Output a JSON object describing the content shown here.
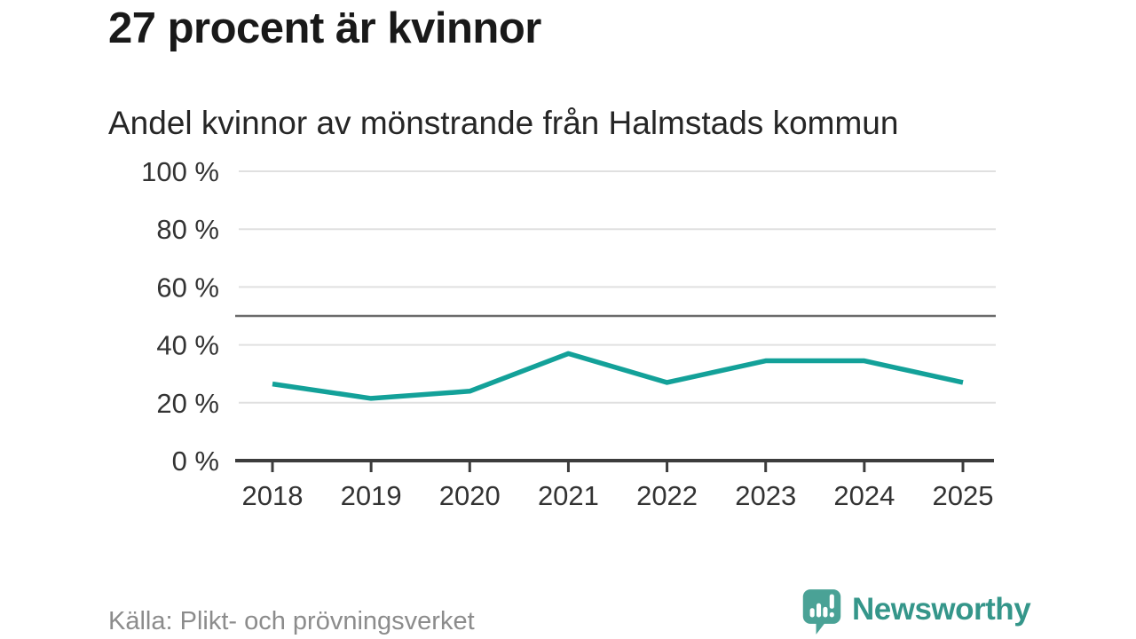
{
  "header": {
    "title": "27 procent är kvinnor",
    "subtitle": "Andel kvinnor av mönstrande från Halmstads kommun"
  },
  "footer": {
    "source": "Källa: Plikt- och prövningsverket",
    "brand": "Newsworthy"
  },
  "colors": {
    "line": "#13a199",
    "grid": "#e0e0e0",
    "axis": "#3c3c3c",
    "reference_line": "#6b6b6b",
    "tick_label": "#333333",
    "title_text": "#191919",
    "subtitle_text": "#262626",
    "source_text": "#8c8c8c",
    "brand_text": "#35968a",
    "brand_icon": "#4aa296"
  },
  "chart_data": {
    "type": "line",
    "categories": [
      "2018",
      "2019",
      "2020",
      "2021",
      "2022",
      "2023",
      "2024",
      "2025"
    ],
    "series": [
      {
        "name": "Andel kvinnor",
        "values": [
          26.5,
          21.5,
          24,
          37,
          27,
          34.5,
          34.5,
          27
        ]
      }
    ],
    "title": "Andel kvinnor av mönstrande från Halmstads kommun",
    "xlabel": "",
    "ylabel": "",
    "ylim": [
      0,
      100
    ],
    "yticks": [
      0,
      20,
      40,
      60,
      80,
      100
    ],
    "ytick_suffix": " %",
    "reference_line": 50,
    "grid": true,
    "legend": "none"
  }
}
